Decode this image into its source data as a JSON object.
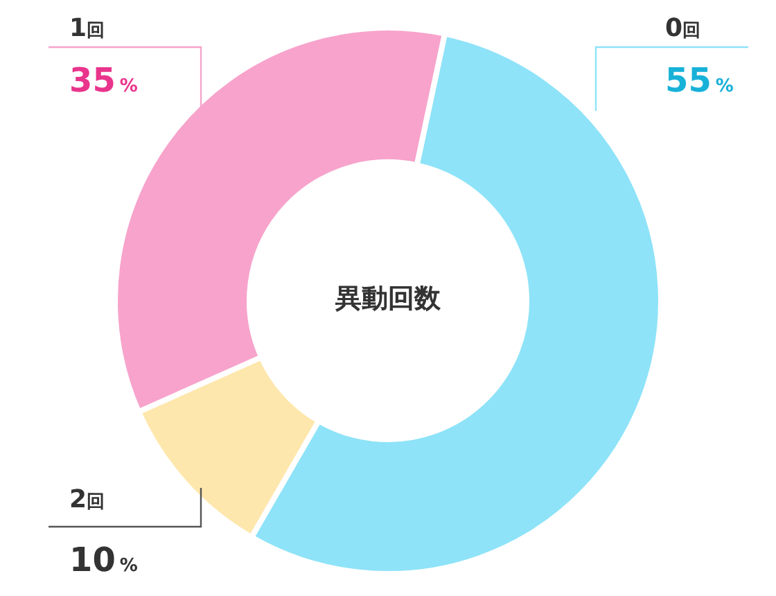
{
  "chart_data": {
    "type": "donut",
    "title": "異動回数",
    "categories": [
      "0回",
      "2回",
      "1回"
    ],
    "values": [
      55,
      10,
      35
    ],
    "colors": [
      "#8ee3f8",
      "#fee7ac",
      "#f7a3cc"
    ],
    "value_labels": [
      "55%",
      "10%",
      "35%"
    ]
  }
}
